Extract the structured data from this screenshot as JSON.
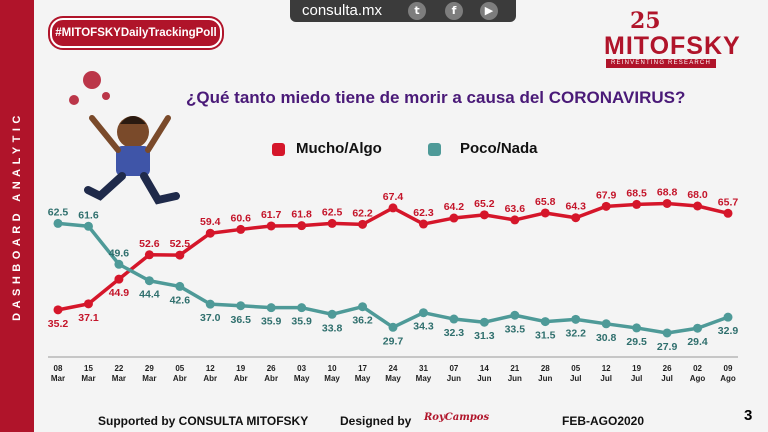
{
  "sidebar": {
    "text": "DASHBOARD ANALYTIC"
  },
  "header": {
    "site": "consulta.mx",
    "social": [
      "twitter-icon",
      "facebook-icon",
      "youtube-icon"
    ]
  },
  "badge": {
    "text": "#MITOFSKYDailyTrackingPoll"
  },
  "logo": {
    "number": "25",
    "name": "MITOFSKY",
    "tagline": "REINVENTING RESEARCH"
  },
  "chart_data": {
    "type": "line",
    "title": "¿Qué tanto miedo tiene de morir a causa del CORONAVIRUS?",
    "categories": [
      "08 Mar",
      "15 Mar",
      "22 Mar",
      "29 Mar",
      "05 Abr",
      "12 Abr",
      "19 Abr",
      "26 Abr",
      "03 May",
      "10 May",
      "17 May",
      "24 May",
      "31 May",
      "07 Jun",
      "14 Jun",
      "21 Jun",
      "28 Jun",
      "05 Jul",
      "12 Jul",
      "19 Jul",
      "26 Jul",
      "02 Ago",
      "09 Ago"
    ],
    "series": [
      {
        "name": "Mucho/Algo",
        "color": "#d5162a",
        "values": [
          35.2,
          37.1,
          44.9,
          52.6,
          52.5,
          59.4,
          60.6,
          61.7,
          61.8,
          62.5,
          62.2,
          67.4,
          62.3,
          64.2,
          65.2,
          63.6,
          65.8,
          64.3,
          67.9,
          68.5,
          68.8,
          68.0,
          65.7
        ]
      },
      {
        "name": "Poco/Nada",
        "color": "#4e9a98",
        "values": [
          62.5,
          61.6,
          49.6,
          44.4,
          42.6,
          37.0,
          36.5,
          35.9,
          35.9,
          33.8,
          36.2,
          29.7,
          34.3,
          32.3,
          31.3,
          33.5,
          31.5,
          32.2,
          30.8,
          29.5,
          27.9,
          29.4,
          32.9
        ]
      }
    ],
    "ylim": [
      20,
      80
    ]
  },
  "footer": {
    "supported": "Supported by   CONSULTA   MITOFSKY",
    "designed": "Designed by",
    "designer": "RoyCampos",
    "period": "FEB-AGO2020",
    "page": "3"
  }
}
